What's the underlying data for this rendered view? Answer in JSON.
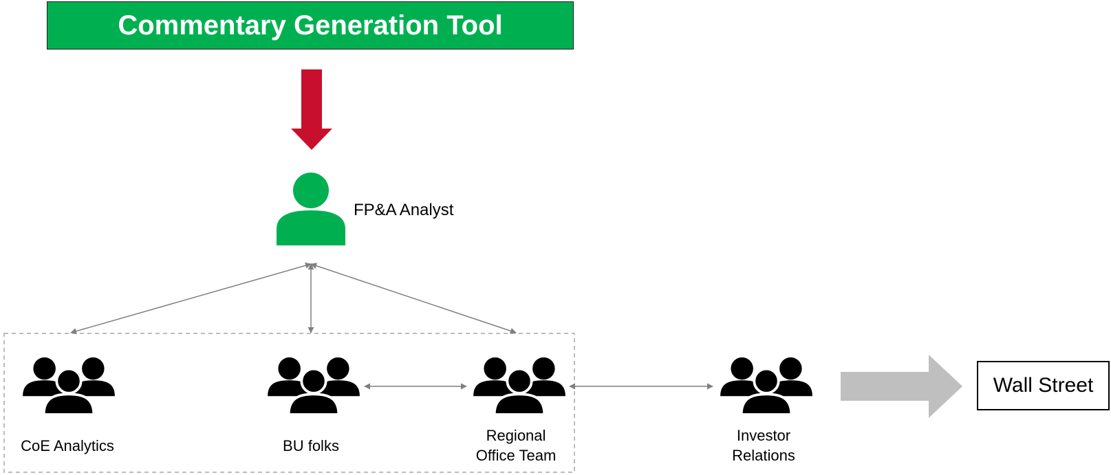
{
  "title": "Commentary Generation Tool",
  "analyst": {
    "label": "FP&A Analyst",
    "icon": "person-icon",
    "color": "#00b050"
  },
  "teams": [
    {
      "label": "CoE Analytics",
      "icon": "group-icon"
    },
    {
      "label": "BU folks",
      "icon": "group-icon"
    },
    {
      "label": "Regional\nOffice Team",
      "icon": "group-icon"
    },
    {
      "label": "Investor\nRelations",
      "icon": "group-icon"
    }
  ],
  "destination": {
    "label": "Wall Street"
  },
  "colors": {
    "banner": "#00b050",
    "down_arrow": "#c8102e",
    "connector": "#7f7f7f",
    "big_arrow": "#bfbfbf",
    "dashed_border": "#a6a6a6"
  }
}
